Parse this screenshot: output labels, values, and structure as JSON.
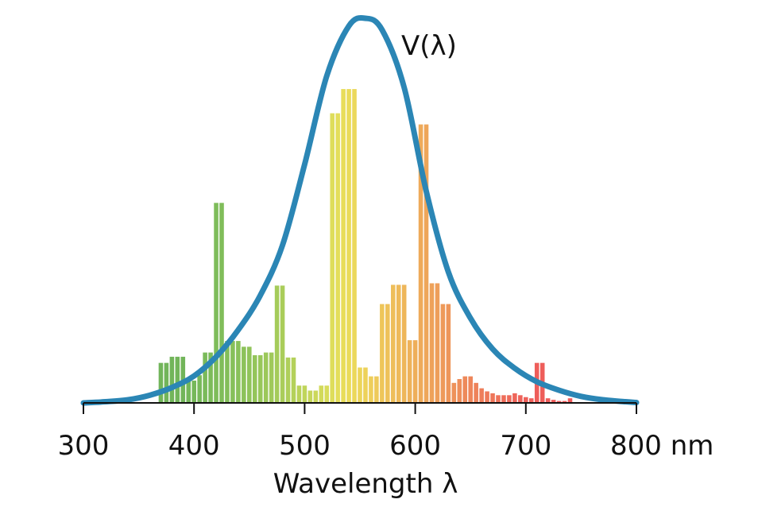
{
  "chart_data": {
    "type": "bar",
    "xlabel": "Wavelength λ",
    "xlim": [
      300,
      800
    ],
    "ylim": [
      0,
      1
    ],
    "x_ticks": [
      {
        "value": 300,
        "label": "300"
      },
      {
        "value": 400,
        "label": "400"
      },
      {
        "value": 500,
        "label": "500"
      },
      {
        "value": 600,
        "label": "600"
      },
      {
        "value": 700,
        "label": "700"
      },
      {
        "value": 800,
        "label": "800 nm"
      }
    ],
    "grid": false,
    "legend": "none",
    "curve": {
      "label": "V(λ)",
      "peak_x": 555,
      "color": "#2b86b5",
      "points": [
        [
          300,
          0.0
        ],
        [
          320,
          0.003
        ],
        [
          340,
          0.008
        ],
        [
          360,
          0.02
        ],
        [
          380,
          0.04
        ],
        [
          400,
          0.07
        ],
        [
          420,
          0.12
        ],
        [
          440,
          0.19
        ],
        [
          460,
          0.28
        ],
        [
          480,
          0.41
        ],
        [
          500,
          0.62
        ],
        [
          520,
          0.85
        ],
        [
          540,
          0.98
        ],
        [
          555,
          1.0
        ],
        [
          570,
          0.97
        ],
        [
          590,
          0.82
        ],
        [
          610,
          0.55
        ],
        [
          630,
          0.34
        ],
        [
          650,
          0.22
        ],
        [
          670,
          0.14
        ],
        [
          690,
          0.09
        ],
        [
          710,
          0.055
        ],
        [
          730,
          0.033
        ],
        [
          750,
          0.017
        ],
        [
          770,
          0.008
        ],
        [
          790,
          0.003
        ],
        [
          800,
          0.001
        ]
      ]
    },
    "bar_width": 4,
    "bars": [
      {
        "x": 370,
        "v": 0.104,
        "color": "#72b55a"
      },
      {
        "x": 375,
        "v": 0.104,
        "color": "#72b55a"
      },
      {
        "x": 380,
        "v": 0.12,
        "color": "#72b55a"
      },
      {
        "x": 385,
        "v": 0.12,
        "color": "#72b55a"
      },
      {
        "x": 390,
        "v": 0.12,
        "color": "#72b55a"
      },
      {
        "x": 395,
        "v": 0.065,
        "color": "#74b75a"
      },
      {
        "x": 400,
        "v": 0.058,
        "color": "#76b85a"
      },
      {
        "x": 405,
        "v": 0.072,
        "color": "#78b95a"
      },
      {
        "x": 410,
        "v": 0.131,
        "color": "#7aba5a"
      },
      {
        "x": 415,
        "v": 0.131,
        "color": "#7cbb5a"
      },
      {
        "x": 420,
        "v": 0.52,
        "color": "#7ebc5a"
      },
      {
        "x": 425,
        "v": 0.52,
        "color": "#80bd5a"
      },
      {
        "x": 430,
        "v": 0.161,
        "color": "#83be5a"
      },
      {
        "x": 435,
        "v": 0.161,
        "color": "#86c05a"
      },
      {
        "x": 440,
        "v": 0.161,
        "color": "#89c15a"
      },
      {
        "x": 445,
        "v": 0.146,
        "color": "#8cc25a"
      },
      {
        "x": 450,
        "v": 0.146,
        "color": "#90c45a"
      },
      {
        "x": 455,
        "v": 0.124,
        "color": "#94c55a"
      },
      {
        "x": 460,
        "v": 0.124,
        "color": "#98c75a"
      },
      {
        "x": 465,
        "v": 0.131,
        "color": "#9cc85a"
      },
      {
        "x": 470,
        "v": 0.131,
        "color": "#a0c95a"
      },
      {
        "x": 475,
        "v": 0.305,
        "color": "#a5cb5a"
      },
      {
        "x": 480,
        "v": 0.305,
        "color": "#aacd5a"
      },
      {
        "x": 485,
        "v": 0.118,
        "color": "#afcf5a"
      },
      {
        "x": 490,
        "v": 0.118,
        "color": "#b4d15a"
      },
      {
        "x": 495,
        "v": 0.045,
        "color": "#bad35a"
      },
      {
        "x": 500,
        "v": 0.045,
        "color": "#c0d55a"
      },
      {
        "x": 505,
        "v": 0.032,
        "color": "#c6d65a"
      },
      {
        "x": 510,
        "v": 0.032,
        "color": "#ccd85a"
      },
      {
        "x": 515,
        "v": 0.045,
        "color": "#d2da5a"
      },
      {
        "x": 520,
        "v": 0.045,
        "color": "#d8dc5a"
      },
      {
        "x": 525,
        "v": 0.753,
        "color": "#dedd5a"
      },
      {
        "x": 530,
        "v": 0.753,
        "color": "#e4de5a"
      },
      {
        "x": 535,
        "v": 0.816,
        "color": "#e8dd5a"
      },
      {
        "x": 540,
        "v": 0.816,
        "color": "#eadb5a"
      },
      {
        "x": 545,
        "v": 0.816,
        "color": "#ebd85a"
      },
      {
        "x": 550,
        "v": 0.092,
        "color": "#ecd55a"
      },
      {
        "x": 555,
        "v": 0.092,
        "color": "#edd25a"
      },
      {
        "x": 560,
        "v": 0.069,
        "color": "#eece5a"
      },
      {
        "x": 565,
        "v": 0.069,
        "color": "#eeca5a"
      },
      {
        "x": 570,
        "v": 0.257,
        "color": "#eec65a"
      },
      {
        "x": 575,
        "v": 0.257,
        "color": "#eec25a"
      },
      {
        "x": 580,
        "v": 0.307,
        "color": "#eebe5a"
      },
      {
        "x": 585,
        "v": 0.307,
        "color": "#eeba5a"
      },
      {
        "x": 590,
        "v": 0.307,
        "color": "#eeb65a"
      },
      {
        "x": 595,
        "v": 0.163,
        "color": "#eeb25a"
      },
      {
        "x": 600,
        "v": 0.163,
        "color": "#eeae5a"
      },
      {
        "x": 605,
        "v": 0.724,
        "color": "#eeaa5a"
      },
      {
        "x": 610,
        "v": 0.724,
        "color": "#eea65a"
      },
      {
        "x": 615,
        "v": 0.311,
        "color": "#eea25a"
      },
      {
        "x": 620,
        "v": 0.311,
        "color": "#ee9e5a"
      },
      {
        "x": 625,
        "v": 0.257,
        "color": "#ee9a5a"
      },
      {
        "x": 630,
        "v": 0.257,
        "color": "#ee965a"
      },
      {
        "x": 635,
        "v": 0.052,
        "color": "#ee925a"
      },
      {
        "x": 640,
        "v": 0.062,
        "color": "#ee8e5a"
      },
      {
        "x": 645,
        "v": 0.069,
        "color": "#ee8a5a"
      },
      {
        "x": 650,
        "v": 0.069,
        "color": "#ee865a"
      },
      {
        "x": 655,
        "v": 0.052,
        "color": "#ee825a"
      },
      {
        "x": 660,
        "v": 0.038,
        "color": "#ee7e5a"
      },
      {
        "x": 665,
        "v": 0.03,
        "color": "#ee7a5a"
      },
      {
        "x": 670,
        "v": 0.025,
        "color": "#ee765a"
      },
      {
        "x": 675,
        "v": 0.02,
        "color": "#ee725a"
      },
      {
        "x": 680,
        "v": 0.02,
        "color": "#ee6e5a"
      },
      {
        "x": 685,
        "v": 0.02,
        "color": "#ee6a5a"
      },
      {
        "x": 690,
        "v": 0.025,
        "color": "#ee665a"
      },
      {
        "x": 695,
        "v": 0.02,
        "color": "#ee625a"
      },
      {
        "x": 700,
        "v": 0.015,
        "color": "#ee605a"
      },
      {
        "x": 705,
        "v": 0.012,
        "color": "#ee605a"
      },
      {
        "x": 710,
        "v": 0.104,
        "color": "#ee5e5a"
      },
      {
        "x": 715,
        "v": 0.104,
        "color": "#ee5e5a"
      },
      {
        "x": 720,
        "v": 0.012,
        "color": "#ee5c5a"
      },
      {
        "x": 725,
        "v": 0.008,
        "color": "#ee5c5a"
      },
      {
        "x": 730,
        "v": 0.005,
        "color": "#ee5a5a"
      },
      {
        "x": 735,
        "v": 0.005,
        "color": "#ee5a5a"
      },
      {
        "x": 740,
        "v": 0.012,
        "color": "#ee5a5a"
      }
    ]
  }
}
